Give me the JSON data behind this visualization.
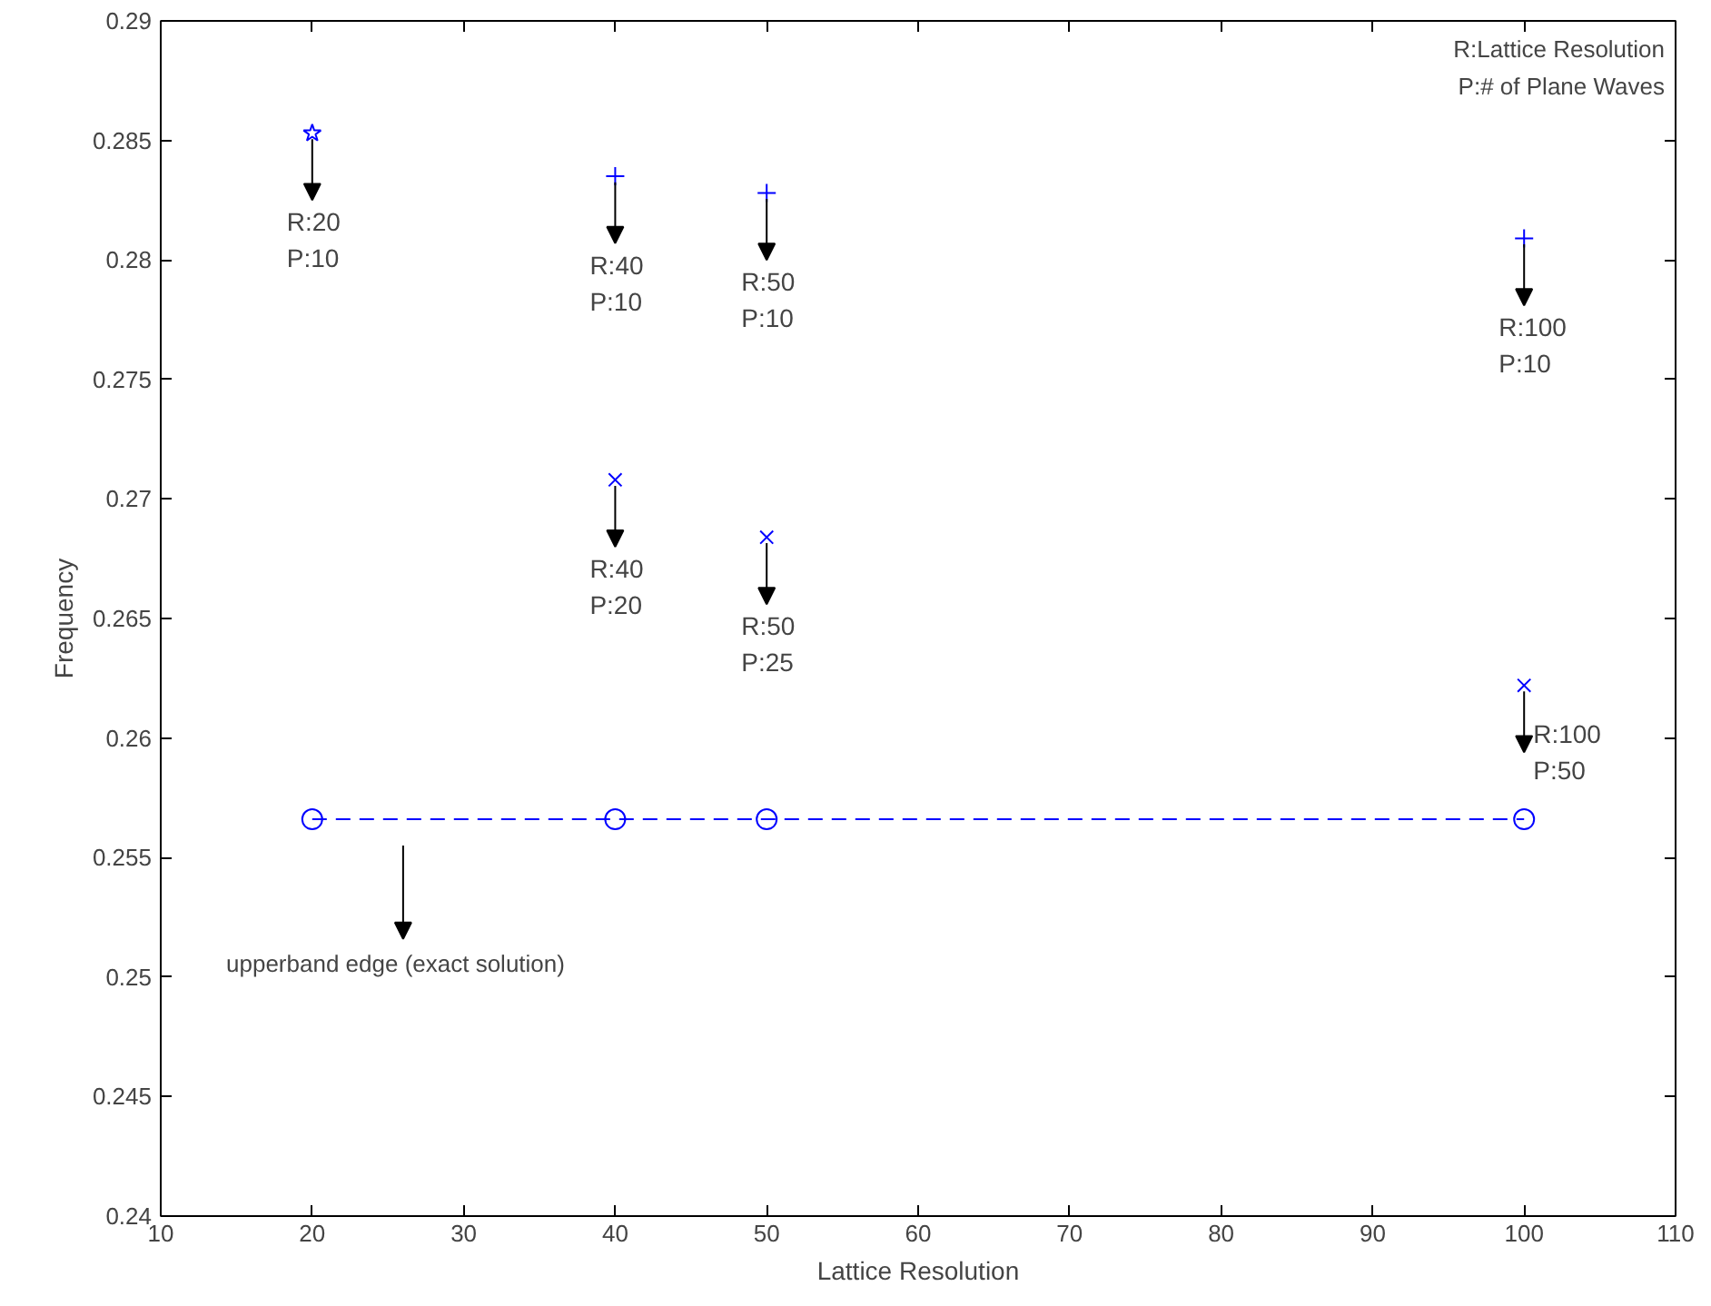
{
  "chart_data": {
    "type": "scatter",
    "xlabel": "Lattice Resolution",
    "ylabel": "Frequency",
    "xlim": [
      10,
      110
    ],
    "xticks": [
      10,
      20,
      30,
      40,
      50,
      60,
      70,
      80,
      90,
      100,
      110
    ],
    "ylim": [
      0.24,
      0.29
    ],
    "yticks": [
      0.24,
      0.245,
      0.25,
      0.255,
      0.26,
      0.265,
      0.27,
      0.275,
      0.28,
      0.285,
      0.29
    ],
    "grid": false,
    "series": [
      {
        "marker": "star",
        "color": "#0000ff",
        "x": [
          20
        ],
        "values": [
          0.2853
        ]
      },
      {
        "marker": "cross",
        "color": "#0000ff",
        "x": [
          40,
          50,
          100
        ],
        "values": [
          0.2835,
          0.2828,
          0.2809
        ]
      },
      {
        "marker": "x",
        "color": "#0000ff",
        "x": [
          40,
          50,
          100
        ],
        "values": [
          0.2708,
          0.2684,
          0.2622
        ]
      },
      {
        "type": "line",
        "marker": "circle",
        "line_style": "dashed",
        "color": "#0000ff",
        "x": [
          20,
          40,
          50,
          100
        ],
        "values": [
          0.2566,
          0.2566,
          0.2566,
          0.2566
        ]
      }
    ],
    "annotations": [
      "R:Lattice Resolution\nP:# of Plane Waves",
      {
        "text": "R:20\nP:10",
        "x": 20,
        "y": 0.2853
      },
      {
        "text": "R:40\nP:10",
        "x": 40,
        "y": 0.2835
      },
      {
        "text": "R:50\nP:10",
        "x": 50,
        "y": 0.2828
      },
      {
        "text": "R:100\nP:10",
        "x": 100,
        "y": 0.2809
      },
      {
        "text": "R:40\nP:20",
        "x": 40,
        "y": 0.2708
      },
      {
        "text": "R:50\nP:25",
        "x": 50,
        "y": 0.2684
      },
      {
        "text": "R:100\nP:50",
        "x": 100,
        "y": 0.2622
      },
      "upperband edge (exact solution)"
    ]
  }
}
